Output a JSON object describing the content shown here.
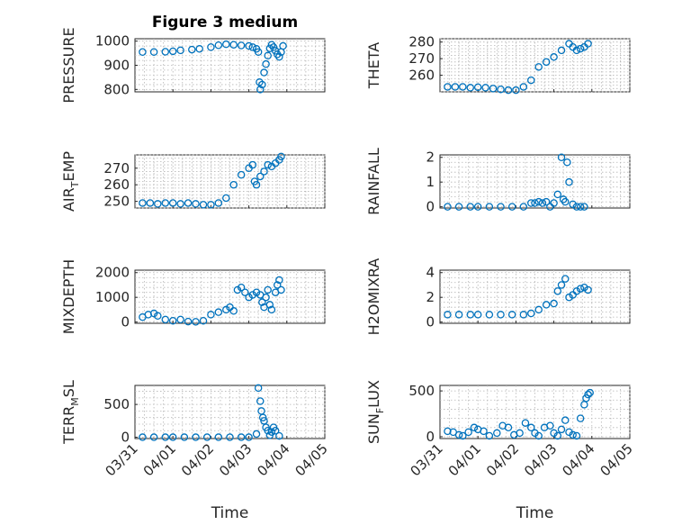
{
  "figure": {
    "title": "Figure 3 medium",
    "marker_color": "#0072BD",
    "grid": true,
    "grid_style": "dotted",
    "marker": "open-circle"
  },
  "chart_data": [
    {
      "type": "scatter",
      "ylabel": "PRESSURE",
      "ylim": [
        790,
        1010
      ],
      "yticks": [
        800,
        900,
        1000
      ],
      "xlim": [
        0,
        5
      ],
      "xticklabels_visible": false,
      "x": [
        0.2,
        0.5,
        0.8,
        1.0,
        1.2,
        1.5,
        1.7,
        2.0,
        2.2,
        2.4,
        2.6,
        2.8,
        3.0,
        3.1,
        3.2,
        3.25,
        3.28,
        3.3,
        3.35,
        3.4,
        3.45,
        3.5,
        3.55,
        3.6,
        3.65,
        3.7,
        3.75,
        3.8,
        3.85,
        3.9
      ],
      "y": [
        955,
        955,
        956,
        958,
        962,
        965,
        968,
        975,
        983,
        987,
        985,
        982,
        980,
        975,
        968,
        955,
        830,
        800,
        820,
        870,
        905,
        940,
        970,
        985,
        975,
        960,
        945,
        935,
        955,
        980
      ]
    },
    {
      "type": "scatter",
      "ylabel": "THETA",
      "ylim": [
        250,
        282
      ],
      "yticks": [
        260,
        270,
        280
      ],
      "xlim": [
        0,
        5
      ],
      "xticklabels_visible": false,
      "x": [
        0.2,
        0.4,
        0.6,
        0.8,
        1.0,
        1.2,
        1.4,
        1.6,
        1.8,
        2.0,
        2.2,
        2.4,
        2.6,
        2.8,
        3.0,
        3.2,
        3.4,
        3.5,
        3.6,
        3.7,
        3.8,
        3.9
      ],
      "y": [
        253,
        253,
        253,
        252.5,
        252.8,
        252.5,
        252,
        251.5,
        251,
        251,
        253,
        257,
        265,
        268,
        271,
        275,
        279,
        277,
        275,
        276,
        277,
        279
      ]
    },
    {
      "type": "scatter",
      "ylabel": "AIR_TEMP",
      "ylim": [
        246,
        278
      ],
      "yticks": [
        250,
        260,
        270
      ],
      "xlim": [
        0,
        5
      ],
      "xticklabels_visible": false,
      "x": [
        0.2,
        0.4,
        0.6,
        0.8,
        1.0,
        1.2,
        1.4,
        1.6,
        1.8,
        2.0,
        2.2,
        2.4,
        2.6,
        2.8,
        3.0,
        3.1,
        3.15,
        3.2,
        3.3,
        3.4,
        3.5,
        3.6,
        3.7,
        3.8,
        3.85
      ],
      "y": [
        249,
        249,
        248.5,
        249,
        249,
        248.5,
        249,
        248.5,
        248,
        248,
        249,
        252,
        260,
        266,
        270,
        272,
        262,
        260,
        265,
        268,
        272,
        271,
        273,
        275,
        277
      ]
    },
    {
      "type": "scatter",
      "ylabel": "RAINFALL",
      "ylim": [
        -0.05,
        2.1
      ],
      "yticks": [
        0,
        1,
        2
      ],
      "xlim": [
        0,
        5
      ],
      "xticklabels_visible": false,
      "x": [
        0.2,
        0.5,
        0.8,
        1.0,
        1.3,
        1.6,
        1.9,
        2.2,
        2.4,
        2.5,
        2.6,
        2.7,
        2.8,
        2.9,
        3.0,
        3.1,
        3.2,
        3.25,
        3.3,
        3.35,
        3.4,
        3.5,
        3.6,
        3.7,
        3.8
      ],
      "y": [
        0,
        0,
        0,
        0,
        0,
        0,
        0,
        0,
        0.15,
        0.15,
        0.2,
        0.15,
        0.2,
        0,
        0.15,
        0.5,
        2.0,
        0.3,
        0.2,
        1.8,
        1.0,
        0.1,
        0,
        0,
        0
      ]
    },
    {
      "type": "scatter",
      "ylabel": "MIXDEPTH",
      "ylim": [
        -50,
        2100
      ],
      "yticks": [
        0,
        1000,
        2000
      ],
      "xlim": [
        0,
        5
      ],
      "xticklabels_visible": false,
      "x": [
        0.2,
        0.35,
        0.5,
        0.6,
        0.8,
        1.0,
        1.2,
        1.4,
        1.6,
        1.8,
        2.0,
        2.2,
        2.4,
        2.5,
        2.6,
        2.7,
        2.8,
        2.9,
        3.0,
        3.1,
        3.2,
        3.3,
        3.35,
        3.4,
        3.45,
        3.5,
        3.55,
        3.6,
        3.7,
        3.75,
        3.8,
        3.85
      ],
      "y": [
        200,
        300,
        350,
        250,
        100,
        50,
        100,
        20,
        10,
        50,
        300,
        400,
        500,
        600,
        450,
        1300,
        1400,
        1200,
        1000,
        1100,
        1200,
        1100,
        800,
        600,
        1000,
        1300,
        700,
        500,
        1200,
        1500,
        1700,
        1300
      ]
    },
    {
      "type": "scatter",
      "ylabel": "H2OMIXRA",
      "ylim": [
        -0.1,
        4.2
      ],
      "yticks": [
        0,
        2,
        4
      ],
      "xlim": [
        0,
        5
      ],
      "xticklabels_visible": false,
      "x": [
        0.2,
        0.5,
        0.8,
        1.0,
        1.3,
        1.6,
        1.9,
        2.2,
        2.4,
        2.6,
        2.8,
        3.0,
        3.1,
        3.2,
        3.3,
        3.4,
        3.5,
        3.6,
        3.7,
        3.8,
        3.9
      ],
      "y": [
        0.6,
        0.6,
        0.6,
        0.6,
        0.6,
        0.6,
        0.6,
        0.6,
        0.7,
        1.0,
        1.4,
        1.5,
        2.5,
        3.0,
        3.5,
        2.0,
        2.2,
        2.5,
        2.7,
        2.8,
        2.6
      ]
    },
    {
      "type": "scatter",
      "ylabel": "TERR_MSL",
      "ylim": [
        -20,
        790
      ],
      "yticks": [
        0,
        500
      ],
      "xlim": [
        0,
        5
      ],
      "xticklabels": [
        "03/31",
        "04/01",
        "04/02",
        "04/03",
        "04/04",
        "04/05"
      ],
      "xlabel": "Time",
      "x": [
        0.2,
        0.5,
        0.8,
        1.0,
        1.3,
        1.6,
        1.9,
        2.2,
        2.5,
        2.8,
        3.0,
        3.2,
        3.25,
        3.3,
        3.33,
        3.37,
        3.4,
        3.45,
        3.5,
        3.55,
        3.6,
        3.65,
        3.7,
        3.8
      ],
      "y": [
        0,
        0,
        0,
        0,
        0,
        0,
        0,
        0,
        0,
        0,
        0,
        50,
        750,
        550,
        400,
        300,
        250,
        150,
        100,
        30,
        80,
        150,
        100,
        20
      ]
    },
    {
      "type": "scatter",
      "ylabel": "SUN_FLUX",
      "ylim": [
        -20,
        560
      ],
      "yticks": [
        0,
        500
      ],
      "xlim": [
        0,
        5
      ],
      "xticklabels": [
        "03/31",
        "04/01",
        "04/02",
        "04/03",
        "04/04",
        "04/05"
      ],
      "xlabel": "Time",
      "x": [
        0.2,
        0.35,
        0.5,
        0.6,
        0.75,
        0.9,
        1.0,
        1.15,
        1.3,
        1.5,
        1.65,
        1.8,
        1.95,
        2.1,
        2.25,
        2.4,
        2.5,
        2.6,
        2.75,
        2.9,
        3.0,
        3.1,
        3.2,
        3.3,
        3.4,
        3.5,
        3.6,
        3.7,
        3.8,
        3.85,
        3.9,
        3.95
      ],
      "y": [
        60,
        50,
        20,
        10,
        50,
        100,
        80,
        60,
        10,
        40,
        120,
        100,
        20,
        40,
        150,
        100,
        40,
        10,
        100,
        120,
        40,
        10,
        80,
        180,
        50,
        20,
        10,
        200,
        350,
        420,
        460,
        480
      ]
    }
  ]
}
